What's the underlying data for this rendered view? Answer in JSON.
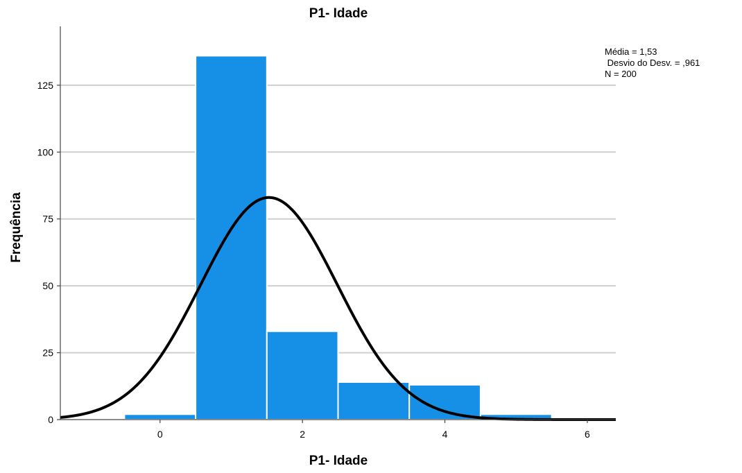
{
  "chart_data": {
    "type": "bar",
    "title": "P1- Idade",
    "xlabel": "P1- Idade",
    "ylabel": "Frequência",
    "xlim": [
      -1.4,
      6.4
    ],
    "ylim": [
      0,
      147
    ],
    "x_ticks": [
      0,
      2,
      4,
      6
    ],
    "y_ticks": [
      0,
      25,
      50,
      75,
      100,
      125
    ],
    "grid": true,
    "bin_width": 1,
    "bins": [
      {
        "x": 0,
        "value": 2
      },
      {
        "x": 1,
        "value": 136
      },
      {
        "x": 2,
        "value": 33
      },
      {
        "x": 3,
        "value": 14
      },
      {
        "x": 4,
        "value": 13
      },
      {
        "x": 5,
        "value": 2
      }
    ],
    "normal_curve": {
      "mean": 1.53,
      "sd": 0.961,
      "n": 200
    },
    "stats": [
      "Média = 1,53",
      " Desvio do Desv. = ,961",
      "N = 200"
    ],
    "colors": {
      "bar": "#1690e6",
      "curve": "#000000",
      "grid": "#cfcfcf"
    }
  }
}
